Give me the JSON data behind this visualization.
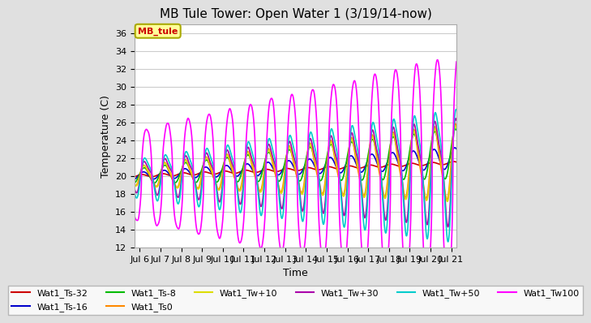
{
  "title": "MB Tule Tower: Open Water 1 (3/19/14-now)",
  "ylabel": "Temperature (C)",
  "xlabel": "Time",
  "ylim": [
    12,
    37
  ],
  "yticks": [
    12,
    14,
    16,
    18,
    20,
    22,
    24,
    26,
    28,
    30,
    32,
    34,
    36
  ],
  "fig_bg_color": "#e0e0e0",
  "plot_bg_color": "#ffffff",
  "legend_box_color": "#ffff99",
  "legend_box_edge": "#aaaa00",
  "series": [
    {
      "label": "Wat1_Ts-32",
      "color": "#cc0000",
      "lw": 1.2
    },
    {
      "label": "Wat1_Ts-16",
      "color": "#0000cc",
      "lw": 1.2
    },
    {
      "label": "Wat1_Ts-8",
      "color": "#00bb00",
      "lw": 1.2
    },
    {
      "label": "Wat1_Ts0",
      "color": "#ff8800",
      "lw": 1.2
    },
    {
      "label": "Wat1_Tw+10",
      "color": "#dddd00",
      "lw": 1.2
    },
    {
      "label": "Wat1_Tw+30",
      "color": "#aa00aa",
      "lw": 1.2
    },
    {
      "label": "Wat1_Tw+50",
      "color": "#00cccc",
      "lw": 1.2
    },
    {
      "label": "Wat1_Tw100",
      "color": "#ff00ff",
      "lw": 1.2
    }
  ],
  "x_start": 5.75,
  "x_end": 21.25,
  "xtick_labels": [
    "Jul 6",
    "Jul 7",
    "Jul 8",
    "Jul 9",
    "Jul 10",
    "Jul 11",
    "Jul 12",
    "Jul 13",
    "Jul 14",
    "Jul 15",
    "Jul 16",
    "Jul 17",
    "Jul 18",
    "Jul 19",
    "Jul 20",
    "Jul 21"
  ],
  "xtick_positions": [
    6,
    7,
    8,
    9,
    10,
    11,
    12,
    13,
    14,
    15,
    16,
    17,
    18,
    19,
    20,
    21
  ],
  "title_fontsize": 11,
  "axis_label_fontsize": 9,
  "tick_fontsize": 8,
  "legend_fontsize": 8
}
